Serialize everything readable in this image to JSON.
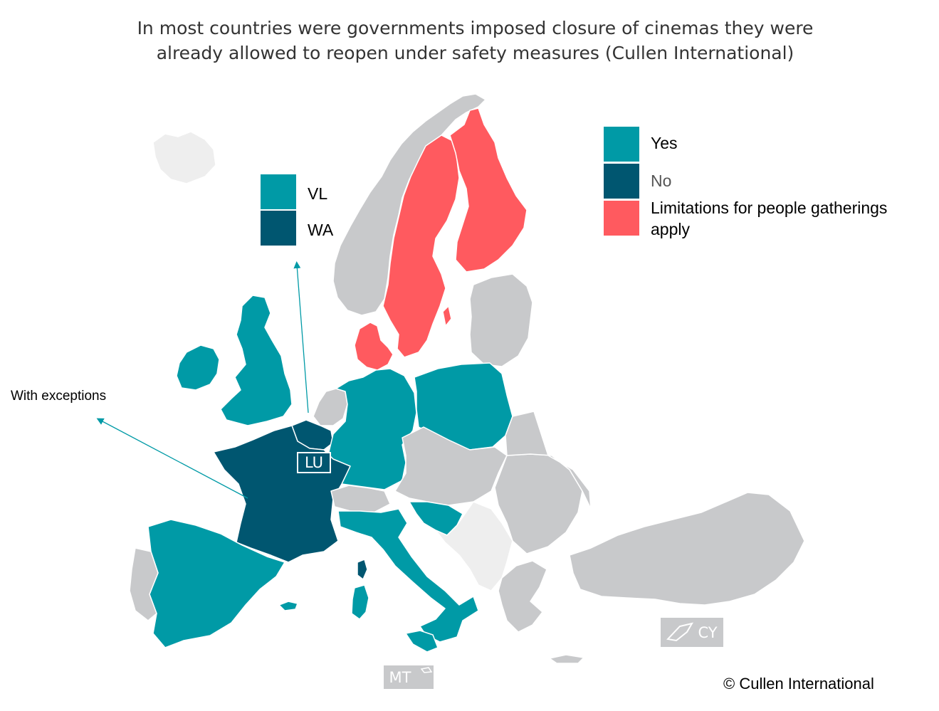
{
  "title": {
    "line1": "In most countries were governments imposed closure of cinemas they were",
    "line2": "already allowed to reopen under safety measures (Cullen International)"
  },
  "colors": {
    "yes": "#009aa6",
    "no": "#005670",
    "limitations": "#ff5a5f",
    "no_data": "#c8c9cb",
    "non_eu": "#eeeeee",
    "border": "#ffffff",
    "arrow": "#009aa6"
  },
  "legend": {
    "yes": "Yes",
    "no": "No",
    "limitations_line1": "Limitations for people gatherings",
    "limitations_line2": "apply"
  },
  "belgium_legend": {
    "vl": "VL",
    "wa": "WA"
  },
  "annotations": {
    "with_exceptions": "With exceptions"
  },
  "inset_labels": {
    "lu": "LU",
    "mt": "MT",
    "cy": "CY"
  },
  "copyright": "© Cullen International",
  "map_data": {
    "categories": [
      "Yes",
      "No",
      "Limitations for people gatherings apply"
    ],
    "countries": {
      "Yes": [
        "UK",
        "IE",
        "ES",
        "DE",
        "PL",
        "IT",
        "HR",
        "BE-VL"
      ],
      "No": [
        "FR",
        "LU",
        "BE-WA"
      ],
      "Limitations for people gatherings apply": [
        "SE",
        "FI",
        "DK"
      ]
    }
  }
}
